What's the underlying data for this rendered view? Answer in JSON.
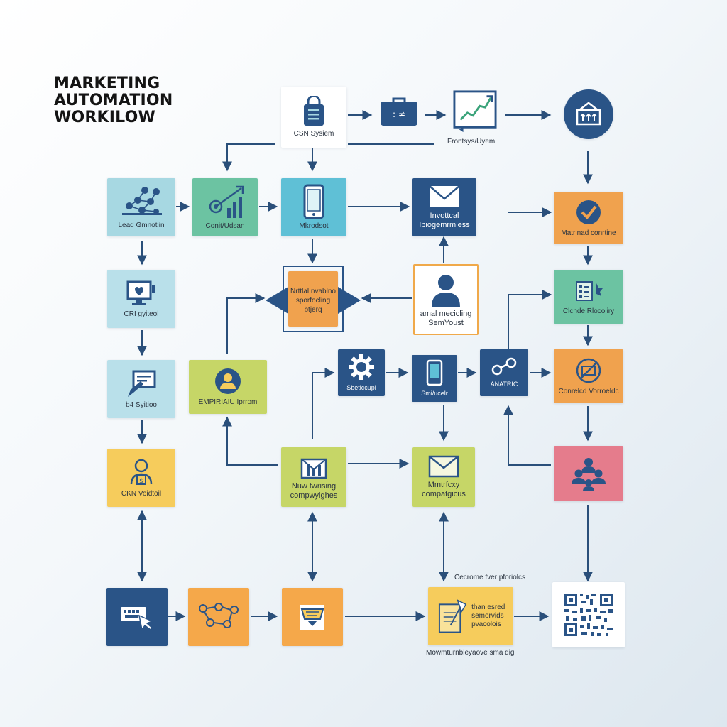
{
  "title": {
    "line1": "MARKETING",
    "line2": "AUTOMATION",
    "line3": "WORKILOW"
  },
  "nodes": {
    "crm_system_top": "CSN Sysiem",
    "frontsys": "Frontsys/Uyem",
    "lead_generation": "Lead Gmnotiin",
    "conversion": "Conit/Udsan",
    "mobile_dot": "Mkrodsot",
    "email_nurture": "Invottcal Ibiogemrmiess",
    "matched_constrine": "Matrlnad conrtine",
    "crm_system_left": "CRI gyiteol",
    "center_target": "Nrttlal nvablno sporfocling btjerq",
    "email_marketing": "amal mecicling SemYoust",
    "cloud_processing": "Clcnde Rlocoiiry",
    "b4_system": "b4 Syitioo",
    "empirial": "EMPIRIAIU Iprrom",
    "settings": "Sbeticcupi",
    "smartphone": "Smi/ucelr",
    "analytic": "ANATRIC",
    "confirmed_verified": "Conrelcd Vorroeldc",
    "crm_workout": "CKN Voidtoil",
    "new_tracking": "Nuw twrising compwyighes",
    "monthly_campaigns": "Mmtrfcxy compatgicus",
    "capture_label": "Cecrome fver pforiolcs",
    "share_text": "than esred semorvids pvacolois",
    "bottom_label": "Mowmturnbleyaove sma dig"
  },
  "icons": {
    "crm_system_top": "shopping-bag-icon",
    "briefcase": "briefcase-icon",
    "frontsys": "trend-chart-icon",
    "navy_circle": "basket-icon",
    "lead_generation": "network-icon",
    "conversion": "growth-chart-icon",
    "mobile_dot": "mobile-icon",
    "email_nurture": "envelope-icon",
    "matched_constrine": "checkmark-icon",
    "crm_system_left": "monitor-icon",
    "email_marketing": "person-icon",
    "cloud_processing": "process-icon",
    "b4_system": "form-icon",
    "empirial": "user-badge-icon",
    "settings": "gear-icon",
    "smartphone": "smartphone-icon",
    "analytic": "link-icon",
    "confirmed_verified": "basket-check-icon",
    "group": "team-icon",
    "crm_workout": "contact-icon",
    "new_tracking": "mail-chart-icon",
    "monthly_campaigns": "envelope-icon",
    "keyboard": "keyboard-click-icon",
    "flow_diagram": "flow-icon",
    "ticket": "ticket-icon",
    "share_doc": "document-pen-icon",
    "qr": "qr-code-icon"
  },
  "colors": {
    "navy": "#2a5487",
    "teal": "#a7d8e2",
    "green": "#6cc3a2",
    "cyan": "#5fc0d6",
    "orange": "#f0a24e",
    "lime": "#c6d667",
    "yellow": "#f6cc5c",
    "pink": "#e57c8c",
    "arrow": "#2a4f7a"
  }
}
